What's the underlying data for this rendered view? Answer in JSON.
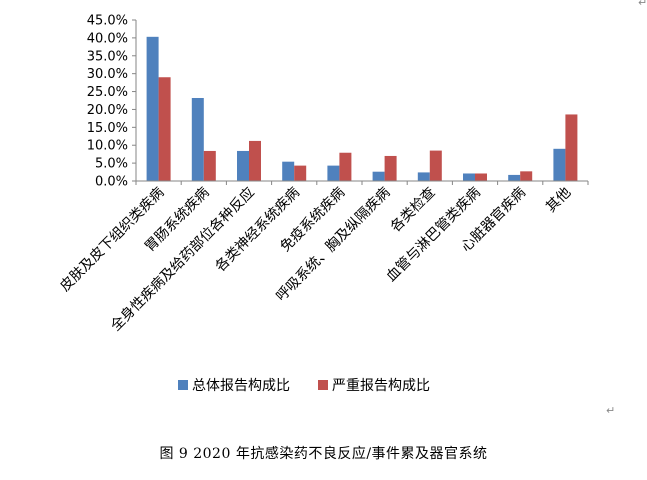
{
  "chart_data": {
    "type": "bar",
    "categories": [
      "皮肤及皮下组织类疾病",
      "胃肠系统疾病",
      "全身性疾病及给药部位各种反应",
      "各类神经系统疾病",
      "免疫系统疾病",
      "呼吸系统、胸及纵隔疾病",
      "各类检查",
      "血管与淋巴管类疾病",
      "心脏器官疾病",
      "其他"
    ],
    "series": [
      {
        "name": "总体报告构成比",
        "color": "#4F81BD",
        "values": [
          40.3,
          23.2,
          8.4,
          5.4,
          4.3,
          2.6,
          2.4,
          2.1,
          1.7,
          9.0
        ]
      },
      {
        "name": "严重报告构成比",
        "color": "#C0504D",
        "values": [
          29.0,
          8.4,
          11.2,
          4.3,
          7.9,
          7.0,
          8.5,
          2.1,
          2.7,
          18.6
        ]
      }
    ],
    "ylim": [
      0,
      45
    ],
    "yticks": [
      "0.0%",
      "5.0%",
      "10.0%",
      "15.0%",
      "20.0%",
      "25.0%",
      "30.0%",
      "35.0%",
      "40.0%",
      "45.0%"
    ],
    "legend": "bottom",
    "grid": false
  },
  "caption": "图 9   2020 年抗感染药不良反应/事件累及器官系统",
  "marks": {
    "return1": "↵",
    "return2": "↵"
  }
}
